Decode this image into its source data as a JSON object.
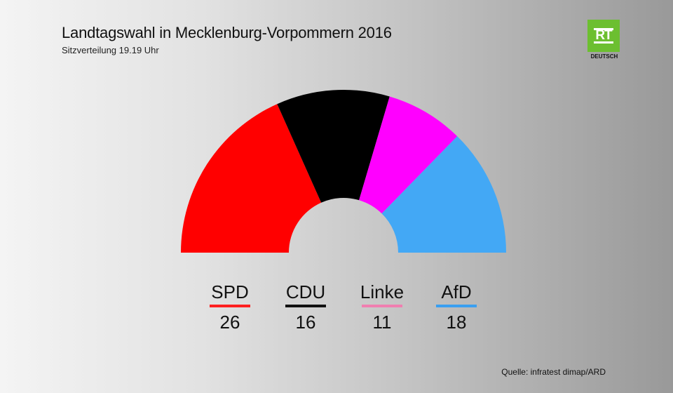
{
  "header": {
    "title": "Landtagswahl in Mecklenburg-Vorpommern 2016",
    "subtitle": "Sitzverteilung 19.19 Uhr"
  },
  "logo": {
    "mark": "RT",
    "caption": "DEUTSCH",
    "color": "#6cbf30"
  },
  "chart_data": {
    "type": "pie",
    "variant": "semicircle-parliament",
    "categories": [
      "SPD",
      "CDU",
      "Linke",
      "AfD"
    ],
    "values": [
      26,
      16,
      11,
      18
    ],
    "colors": [
      "#ff0000",
      "#000000",
      "#ff00ff",
      "#43a8f5"
    ],
    "legend_bar_colors": [
      "#ff2020",
      "#111111",
      "#f07fb0",
      "#3a9ff0"
    ]
  },
  "source": "Quelle: infratest dimap/ARD"
}
